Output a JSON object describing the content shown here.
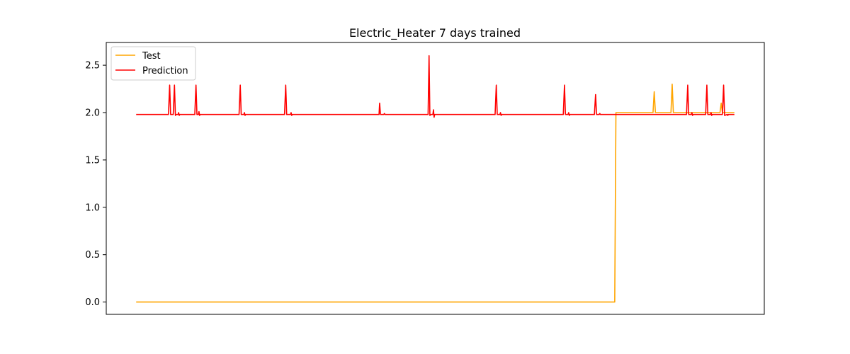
{
  "chart_data": {
    "type": "line",
    "title": "Electric_Heater 7 days trained",
    "xlabel": "",
    "ylabel": "",
    "x_ticks_visible": false,
    "xlim": [
      -25,
      525
    ],
    "ylim": [
      -0.13,
      2.74
    ],
    "y_ticks": [
      0.0,
      0.5,
      1.0,
      1.5,
      2.0,
      2.5
    ],
    "y_tick_labels": [
      "0.0",
      "0.5",
      "1.0",
      "1.5",
      "2.0",
      "2.5"
    ],
    "grid": false,
    "legend": {
      "placement": "top-left",
      "entries": [
        {
          "label": "Test",
          "color": "#ffa500"
        },
        {
          "label": "Prediction",
          "color": "#ff0000"
        }
      ]
    },
    "series": [
      {
        "name": "Test",
        "color": "#ffa500",
        "points": [
          [
            0,
            0.0
          ],
          [
            400,
            0.0
          ],
          [
            401,
            2.0
          ],
          [
            432,
            2.0
          ],
          [
            433,
            2.22
          ],
          [
            434,
            2.0
          ],
          [
            447,
            2.0
          ],
          [
            448,
            2.3
          ],
          [
            449,
            2.0
          ],
          [
            488,
            2.0
          ],
          [
            489,
            2.1
          ],
          [
            490,
            2.0
          ],
          [
            500,
            2.0
          ]
        ]
      },
      {
        "name": "Prediction",
        "color": "#ff0000",
        "points": [
          [
            0,
            1.98
          ],
          [
            27,
            1.98
          ],
          [
            28,
            2.29
          ],
          [
            28.8,
            1.98
          ],
          [
            31,
            1.98
          ],
          [
            32,
            2.29
          ],
          [
            32.8,
            1.97
          ],
          [
            33.5,
            1.98
          ],
          [
            35,
            1.98
          ],
          [
            35.5,
            2.0
          ],
          [
            36,
            1.97
          ],
          [
            36.5,
            1.98
          ],
          [
            49,
            1.98
          ],
          [
            50,
            2.29
          ],
          [
            50.8,
            1.98
          ],
          [
            52,
            1.98
          ],
          [
            52.5,
            2.01
          ],
          [
            53,
            1.97
          ],
          [
            53.5,
            1.98
          ],
          [
            86,
            1.98
          ],
          [
            87,
            2.29
          ],
          [
            87.8,
            1.98
          ],
          [
            90,
            1.98
          ],
          [
            90.5,
            2.0
          ],
          [
            91,
            1.97
          ],
          [
            91.5,
            1.98
          ],
          [
            124,
            1.98
          ],
          [
            125,
            2.29
          ],
          [
            125.8,
            1.98
          ],
          [
            129,
            1.98
          ],
          [
            129.5,
            2.0
          ],
          [
            130,
            1.97
          ],
          [
            130.5,
            1.98
          ],
          [
            203,
            1.98
          ],
          [
            203.5,
            2.1
          ],
          [
            204.2,
            1.98
          ],
          [
            207,
            1.98
          ],
          [
            207.5,
            1.99
          ],
          [
            208,
            1.98
          ],
          [
            244,
            1.98
          ],
          [
            244.8,
            2.6
          ],
          [
            245.5,
            1.97
          ],
          [
            246.5,
            1.98
          ],
          [
            248,
            1.98
          ],
          [
            248.5,
            2.03
          ],
          [
            249,
            1.95
          ],
          [
            249.5,
            1.98
          ],
          [
            300,
            1.98
          ],
          [
            301,
            2.29
          ],
          [
            301.8,
            1.98
          ],
          [
            304,
            1.98
          ],
          [
            304.5,
            2.0
          ],
          [
            305,
            1.97
          ],
          [
            305.5,
            1.98
          ],
          [
            357,
            1.98
          ],
          [
            358,
            2.29
          ],
          [
            358.8,
            1.98
          ],
          [
            361,
            1.98
          ],
          [
            361.5,
            2.0
          ],
          [
            362,
            1.97
          ],
          [
            362.5,
            1.98
          ],
          [
            383,
            1.98
          ],
          [
            384,
            2.19
          ],
          [
            384.8,
            1.98
          ],
          [
            387,
            1.98
          ],
          [
            387.5,
            1.99
          ],
          [
            388,
            1.98
          ],
          [
            460,
            1.98
          ],
          [
            461,
            2.29
          ],
          [
            461.8,
            1.98
          ],
          [
            464,
            1.98
          ],
          [
            464.5,
            2.0
          ],
          [
            465,
            1.97
          ],
          [
            465.5,
            1.98
          ],
          [
            476,
            1.98
          ],
          [
            477,
            2.29
          ],
          [
            477.8,
            1.98
          ],
          [
            480,
            1.98
          ],
          [
            480.5,
            2.0
          ],
          [
            481,
            1.97
          ],
          [
            481.5,
            1.98
          ],
          [
            490,
            1.98
          ],
          [
            491,
            2.29
          ],
          [
            491.8,
            1.97
          ],
          [
            494,
            1.98
          ],
          [
            494.5,
            1.97
          ],
          [
            495,
            1.98
          ],
          [
            500,
            1.98
          ]
        ]
      }
    ]
  }
}
